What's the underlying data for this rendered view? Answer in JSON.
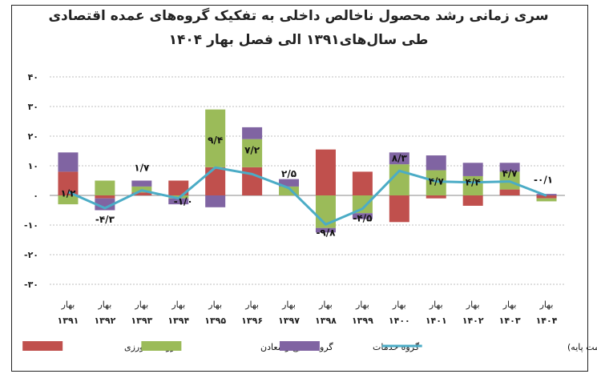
{
  "title_line1": "سری زمانی رشد محصول ناخالص داخلی به تفکیک گروه‌های عمده اقتصادی",
  "title_line2": "طی سال‌های۱۳۹۱ الی فصل بهار ۱۴۰۴",
  "chart_data": {
    "type": "bar",
    "stacked": true,
    "season_label": "بهار",
    "categories": [
      "۱۳۹۱",
      "۱۳۹۲",
      "۱۳۹۳",
      "۱۳۹۴",
      "۱۳۹۵",
      "۱۳۹۶",
      "۱۳۹۷",
      "۱۳۹۸",
      "۱۳۹۹",
      "۱۴۰۰",
      "۱۴۰۱",
      "۱۴۰۲",
      "۱۴۰۳",
      "۱۴۰۴"
    ],
    "ylim": [
      -30,
      40
    ],
    "yticks": [
      40,
      30,
      20,
      10,
      0,
      -10,
      -20,
      -30
    ],
    "ytick_labels": [
      "۴۰",
      "۳۰",
      "۲۰",
      "۱۰",
      "۰",
      "-۱۰",
      "-۲۰",
      "-۳۰"
    ],
    "colors": {
      "agriculture": "#c0504d",
      "industry": "#9bbb59",
      "services": "#8064a2",
      "gdp_line": "#4bacc6",
      "grid": "#bfbfbf",
      "axis_text": "#222222"
    },
    "series": [
      {
        "key": "agriculture",
        "name": "گروه کشاورزی",
        "type": "bar",
        "values": [
          8,
          -1,
          1,
          5,
          9.5,
          9.5,
          0,
          15.5,
          8,
          -9,
          -1,
          -3.5,
          2,
          -1
        ]
      },
      {
        "key": "industry",
        "name": "گروه صنایع و معادن",
        "type": "bar",
        "values": [
          -3,
          5,
          2,
          -1,
          19.5,
          9.5,
          3,
          -11,
          -6,
          10.5,
          8.5,
          6.5,
          6,
          -1
        ]
      },
      {
        "key": "services",
        "name": "گروه خدمات",
        "type": "bar",
        "values": [
          6.5,
          -4,
          2,
          -2,
          -4,
          4,
          2.5,
          -1.5,
          -2,
          4,
          5,
          4.5,
          3,
          0.5
        ]
      },
      {
        "key": "gdp",
        "name": "محصول ناخالص داخلی (به قیمت پایه)",
        "type": "line",
        "values": [
          1.2,
          -4.3,
          1.7,
          -1,
          9.4,
          7.2,
          2.5,
          -9.8,
          -4.5,
          8.3,
          4.7,
          4.4,
          4.7,
          -0.1
        ],
        "labels": [
          "۱/۲",
          "-۴/۳",
          "۱/۷",
          "-۱/۰",
          "۹/۴",
          "۷/۲",
          "۲/۵",
          "-۹/۸",
          "-۴/۵",
          "۸/۳",
          "۴/۷",
          "۴/۴",
          "۴/۷",
          "-۰/۱"
        ]
      }
    ]
  }
}
